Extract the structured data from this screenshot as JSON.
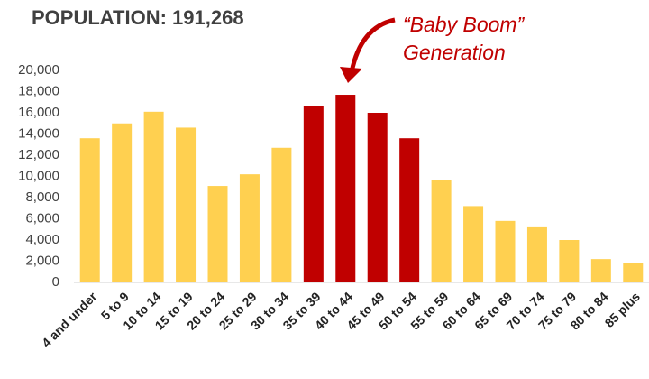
{
  "chart_data": {
    "type": "bar",
    "title": "POPULATION: 191,268",
    "annotation": [
      "“Baby Boom”",
      "Generation"
    ],
    "categories": [
      "4 and under",
      "5 to 9",
      "10 to 14",
      "15 to 19",
      "20 to 24",
      "25 to 29",
      "30 to 34",
      "35 to 39",
      "40 to 44",
      "45 to 49",
      "50 to 54",
      "55 to 59",
      "60 to 64",
      "65 to 69",
      "70 to 74",
      "75 to 79",
      "80 to 84",
      "85 plus"
    ],
    "values": [
      13600,
      15000,
      16100,
      14600,
      9100,
      10200,
      12700,
      16600,
      17700,
      16000,
      13600,
      9700,
      7200,
      5800,
      5200,
      4000,
      2200,
      1800
    ],
    "colors": [
      "#ffd050",
      "#ffd050",
      "#ffd050",
      "#ffd050",
      "#ffd050",
      "#ffd050",
      "#ffd050",
      "#c00000",
      "#c00000",
      "#c00000",
      "#c00000",
      "#ffd050",
      "#ffd050",
      "#ffd050",
      "#ffd050",
      "#ffd050",
      "#ffd050",
      "#ffd050"
    ],
    "ylim": [
      0,
      20000
    ],
    "yticks": [
      0,
      {
        "value": 2000,
        "label": "2,000"
      },
      {
        "value": 4000,
        "label": "4,000"
      },
      {
        "value": 6000,
        "label": "6,000"
      },
      {
        "value": 8000,
        "label": "8,000"
      },
      {
        "value": 10000,
        "label": "10,000"
      },
      {
        "value": 12000,
        "label": "12,000"
      },
      {
        "value": 14000,
        "label": "14,000"
      },
      {
        "value": 16000,
        "label": "16,000"
      },
      {
        "value": 18000,
        "label": "18,000"
      },
      {
        "value": 20000,
        "label": "20,000"
      }
    ],
    "grid": false
  }
}
